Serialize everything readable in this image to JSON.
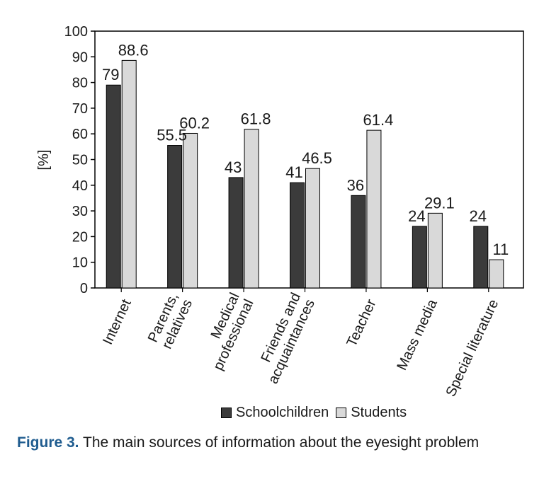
{
  "chart_data": {
    "type": "bar",
    "ylabel": "[%]",
    "ylim": [
      0,
      100
    ],
    "yticks": [
      0,
      10,
      20,
      30,
      40,
      50,
      60,
      70,
      80,
      90,
      100
    ],
    "categories": [
      [
        "Internet"
      ],
      [
        "Parents,",
        "relatives"
      ],
      [
        "Medical",
        "professional"
      ],
      [
        "Friends and",
        "acquaintances"
      ],
      [
        "Teacher"
      ],
      [
        "Mass media"
      ],
      [
        "Special literature"
      ]
    ],
    "series": [
      {
        "name": "Schoolchildren",
        "color": "#3b3b3b",
        "values": [
          79,
          55.5,
          43,
          41,
          36,
          24,
          24
        ]
      },
      {
        "name": "Students",
        "color": "#d9d9d9",
        "values": [
          88.6,
          60.2,
          61.8,
          46.5,
          61.4,
          29.1,
          11
        ]
      }
    ],
    "value_labels": [
      [
        "79",
        "55.5",
        "43",
        "41",
        "36",
        "24",
        "24"
      ],
      [
        "88.6",
        "60.2",
        "61.8",
        "46.5",
        "61.4",
        "29.1",
        "11"
      ]
    ],
    "grid": false,
    "legend_position": "bottom"
  },
  "legend": {
    "schoolchildren": "Schoolchildren",
    "students": "Students"
  },
  "caption": {
    "figure": "Figure 3.",
    "text": " The main sources of information about the eyesight problem"
  }
}
